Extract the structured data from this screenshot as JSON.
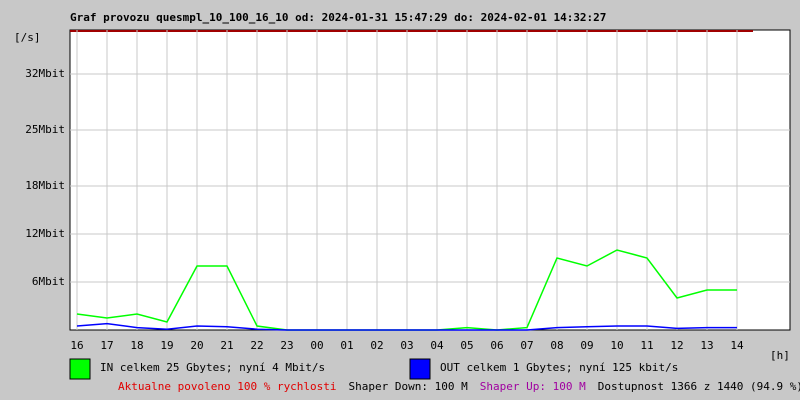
{
  "chart_data": {
    "type": "line",
    "title": "Graf provozu quesmpl_10_100_16_10 od: 2024-01-31 15:47:29 do: 2024-02-01 14:32:27",
    "y_label": "[/s]",
    "x_label": "[h]",
    "categories": [
      "16",
      "17",
      "18",
      "19",
      "20",
      "21",
      "22",
      "23",
      "00",
      "01",
      "02",
      "03",
      "04",
      "05",
      "06",
      "07",
      "08",
      "09",
      "10",
      "11",
      "12",
      "13",
      "14"
    ],
    "series": [
      {
        "name": "IN celkem 25 Gbytes; nyní 4 Mbit/s",
        "color": "#00ff00",
        "values": [
          2,
          1.5,
          2,
          1,
          8,
          8,
          0.5,
          0,
          0,
          0,
          0,
          0,
          0,
          0.3,
          0,
          0.3,
          9,
          8,
          10,
          9,
          4,
          5,
          5
        ]
      },
      {
        "name": "OUT celkem 1 Gbytes; nyní 125 kbit/s",
        "color": "#0000ff",
        "values": [
          0.5,
          0.8,
          0.3,
          0.1,
          0.5,
          0.4,
          0.1,
          0,
          0,
          0,
          0,
          0,
          0,
          0,
          0,
          0,
          0.3,
          0.4,
          0.5,
          0.5,
          0.2,
          0.3,
          0.3
        ]
      }
    ],
    "ylim": [
      0,
      37.5
    ],
    "yticks": [
      {
        "value": 6,
        "label": "6Mbit"
      },
      {
        "value": 12,
        "label": "12Mbit"
      },
      {
        "value": 18,
        "label": "18Mbit"
      },
      {
        "value": 25,
        "label": "25Mbit"
      },
      {
        "value": 32,
        "label": "32Mbit"
      }
    ],
    "grid": true
  },
  "footer": [
    {
      "text": "Aktualne povoleno 100 % rychlosti",
      "color": "#e00000"
    },
    {
      "text": "Shaper Down: 100 M",
      "color": "#000000"
    },
    {
      "text": "Shaper Up: 100 M",
      "color": "#a000a0"
    },
    {
      "text": "Dostupnost 1366 z 1440 (94.9 %)",
      "color": "#000000"
    }
  ]
}
